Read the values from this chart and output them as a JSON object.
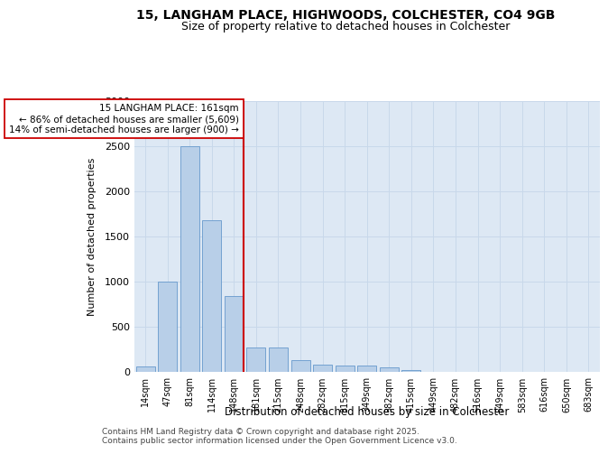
{
  "title_line1": "15, LANGHAM PLACE, HIGHWOODS, COLCHESTER, CO4 9GB",
  "title_line2": "Size of property relative to detached houses in Colchester",
  "xlabel": "Distribution of detached houses by size in Colchester",
  "ylabel": "Number of detached properties",
  "categories": [
    "14sqm",
    "47sqm",
    "81sqm",
    "114sqm",
    "148sqm",
    "181sqm",
    "215sqm",
    "248sqm",
    "282sqm",
    "315sqm",
    "349sqm",
    "382sqm",
    "415sqm",
    "449sqm",
    "482sqm",
    "516sqm",
    "549sqm",
    "583sqm",
    "616sqm",
    "650sqm",
    "683sqm"
  ],
  "values": [
    60,
    1000,
    2500,
    1680,
    840,
    270,
    270,
    130,
    80,
    75,
    70,
    50,
    20,
    5,
    2,
    1,
    1,
    0,
    0,
    0,
    0
  ],
  "bar_color": "#b8cfe8",
  "bar_edge_color": "#6699cc",
  "vline_x_index": 4,
  "vline_color": "#cc0000",
  "annotation_text": "15 LANGHAM PLACE: 161sqm\n← 86% of detached houses are smaller (5,609)\n14% of semi-detached houses are larger (900) →",
  "annotation_box_color": "#ffffff",
  "annotation_box_edge": "#cc0000",
  "ylim": [
    0,
    3000
  ],
  "yticks": [
    0,
    500,
    1000,
    1500,
    2000,
    2500,
    3000
  ],
  "grid_color": "#c8d8ea",
  "bg_color": "#dde8f4",
  "footer_line1": "Contains HM Land Registry data © Crown copyright and database right 2025.",
  "footer_line2": "Contains public sector information licensed under the Open Government Licence v3.0.",
  "title_fontsize": 10,
  "subtitle_fontsize": 9,
  "annotation_fontsize": 7.5,
  "footer_fontsize": 6.5
}
